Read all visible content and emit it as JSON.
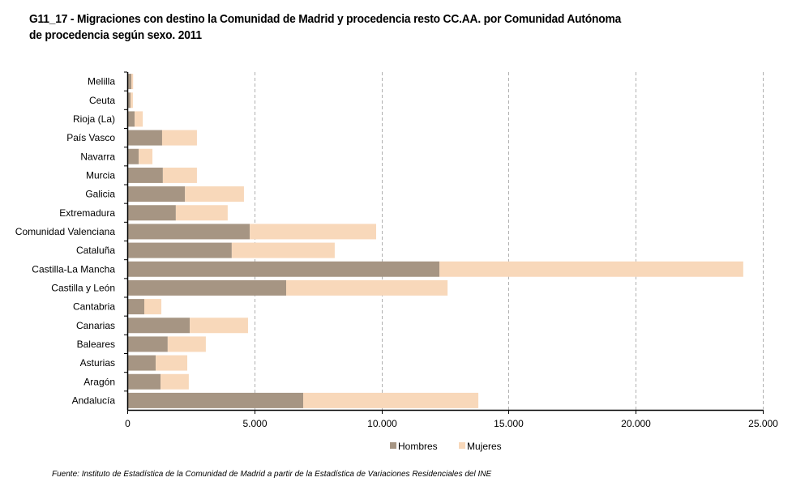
{
  "title_line1": "G11_17 - Migraciones con destino la Comunidad de Madrid y procedencia resto CC.AA. por Comunidad Autónoma",
  "title_line2": "de procedencia según sexo. 2011",
  "source": "Fuente: Instituto de Estadística de la Comunidad de Madrid a partir de la Estadística de Variaciones Residenciales del INE",
  "colors": {
    "hombres": "#a69583",
    "mujeres": "#f8d8ba",
    "grid": "#b0b0b0"
  },
  "chart_data": {
    "type": "bar",
    "orientation": "horizontal",
    "stacked": true,
    "title": "G11_17 - Migraciones con destino la Comunidad de Madrid y procedencia resto CC.AA. por Comunidad Autónoma de procedencia según sexo. 2011",
    "xlabel": "",
    "ylabel": "",
    "xlim": [
      0,
      25000
    ],
    "xticks": [
      0,
      5000,
      10000,
      15000,
      20000,
      25000
    ],
    "xtick_labels": [
      "0",
      "5.000",
      "10.000",
      "15.000",
      "20.000",
      "25.000"
    ],
    "grid": "vertical dashed",
    "legend_position": "bottom-center",
    "categories": [
      "Melilla",
      "Ceuta",
      "Rioja (La)",
      "País Vasco",
      "Navarra",
      "Murcia",
      "Galicia",
      "Extremadura",
      "Comunidad Valenciana",
      "Cataluña",
      "Castilla-La Mancha",
      "Castilla y León",
      "Cantabria",
      "Canarias",
      "Baleares",
      "Asturias",
      "Aragón",
      "Andalucía"
    ],
    "series": [
      {
        "name": "Hombres",
        "values": [
          160,
          130,
          290,
          1370,
          450,
          1400,
          2270,
          1910,
          4820,
          4110,
          12280,
          6250,
          670,
          2460,
          1590,
          1120,
          1310,
          6920
        ]
      },
      {
        "name": "Mujeres",
        "values": [
          70,
          90,
          320,
          1370,
          540,
          1340,
          2320,
          2040,
          4970,
          4050,
          11950,
          6350,
          670,
          2290,
          1500,
          1240,
          1110,
          6890
        ]
      }
    ]
  }
}
